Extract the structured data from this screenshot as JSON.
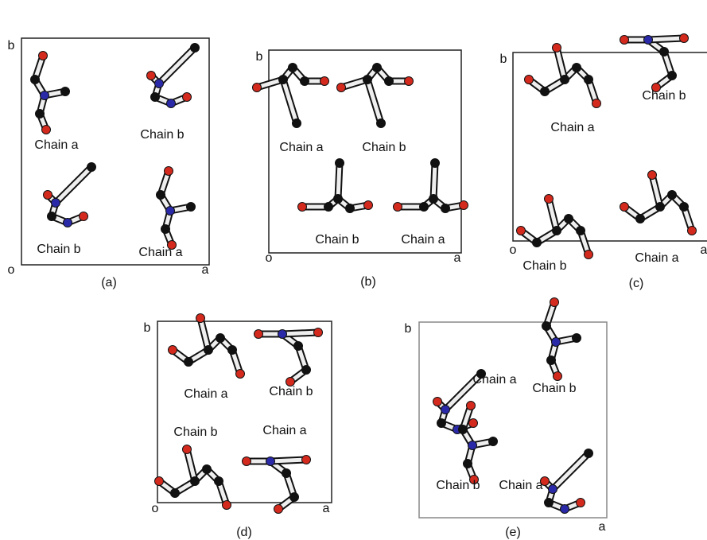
{
  "panels": [
    {
      "caption": "(a)",
      "axis_b": "b",
      "axis_o": "o",
      "axis_a": "a",
      "chains": [
        "Chain a",
        "Chain b",
        "Chain b",
        "Chain a"
      ]
    },
    {
      "caption": "(b)",
      "axis_b": "b",
      "axis_o": "o",
      "axis_a": "a",
      "chains": [
        "Chain a",
        "Chain b",
        "Chain b",
        "Chain a"
      ]
    },
    {
      "caption": "(c)",
      "axis_b": "b",
      "axis_o": "o",
      "axis_a": "a",
      "chains": [
        "Chain a",
        "Chain b",
        "Chain b",
        "Chain a"
      ]
    },
    {
      "caption": "(d)",
      "axis_b": "b",
      "axis_o": "o",
      "axis_a": "a",
      "chains": [
        "Chain a",
        "Chain b",
        "Chain b",
        "Chain a"
      ]
    },
    {
      "caption": "(e)",
      "axis_b": "b",
      "axis_a": "a",
      "chains": [
        "Chain a",
        "Chain b",
        "Chain b",
        "Chain a"
      ]
    }
  ]
}
